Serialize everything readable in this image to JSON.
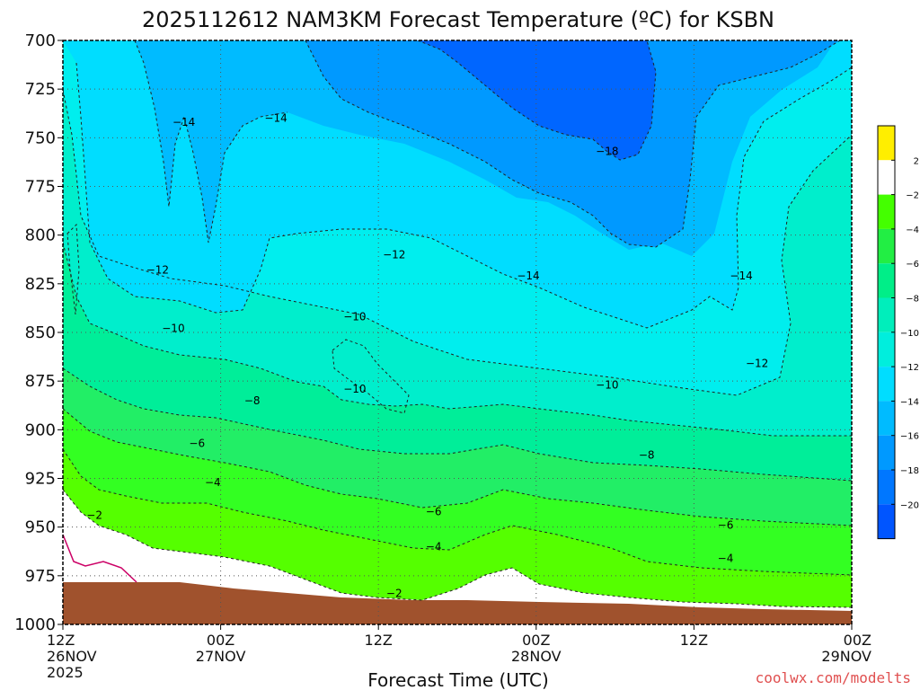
{
  "chart_data": {
    "type": "contour",
    "title": "2025112612 NAM3KM Forecast Temperature (ºC) for KSBN",
    "xlabel": "Forecast Time (UTC)",
    "ylabel": "",
    "y_ticks": [
      "700",
      "725",
      "750",
      "775",
      "800",
      "825",
      "850",
      "875",
      "900",
      "925",
      "950",
      "975",
      "1000"
    ],
    "ylim": [
      1000,
      700
    ],
    "x_ticks": [
      {
        "hour": 0,
        "line1": "12Z",
        "line2": "26NOV",
        "line3": "2025"
      },
      {
        "hour": 12,
        "line1": "00Z",
        "line2": "27NOV",
        "line3": ""
      },
      {
        "hour": 24,
        "line1": "12Z",
        "line2": "",
        "line3": ""
      },
      {
        "hour": 36,
        "line1": "00Z",
        "line2": "28NOV",
        "line3": ""
      },
      {
        "hour": 48,
        "line1": "12Z",
        "line2": "",
        "line3": ""
      },
      {
        "hour": 60,
        "line1": "00Z",
        "line2": "29NOV",
        "line3": ""
      }
    ],
    "xlim": [
      0,
      60
    ],
    "contour_labels": [
      {
        "text": "−14",
        "hour": 9.2,
        "p": 742
      },
      {
        "text": "−14",
        "hour": 16.2,
        "p": 740
      },
      {
        "text": "−18",
        "hour": 41.4,
        "p": 757
      },
      {
        "text": "−12",
        "hour": 7.2,
        "p": 818
      },
      {
        "text": "−12",
        "hour": 25.2,
        "p": 810
      },
      {
        "text": "−14",
        "hour": 35.4,
        "p": 821
      },
      {
        "text": "−14",
        "hour": 51.6,
        "p": 821
      },
      {
        "text": "−10",
        "hour": 8.4,
        "p": 848
      },
      {
        "text": "−10",
        "hour": 22.2,
        "p": 842
      },
      {
        "text": "−10",
        "hour": 22.2,
        "p": 879
      },
      {
        "text": "−10",
        "hour": 41.4,
        "p": 877
      },
      {
        "text": "−12",
        "hour": 52.8,
        "p": 866
      },
      {
        "text": "−8",
        "hour": 14.4,
        "p": 885
      },
      {
        "text": "−6",
        "hour": 10.2,
        "p": 907
      },
      {
        "text": "−8",
        "hour": 44.4,
        "p": 913
      },
      {
        "text": "−4",
        "hour": 11.4,
        "p": 927
      },
      {
        "text": "−6",
        "hour": 28.2,
        "p": 942
      },
      {
        "text": "−6",
        "hour": 50.4,
        "p": 949
      },
      {
        "text": "−2",
        "hour": 2.4,
        "p": 944
      },
      {
        "text": "−4",
        "hour": 28.2,
        "p": 960
      },
      {
        "text": "−4",
        "hour": 50.4,
        "p": 966
      },
      {
        "text": "−2",
        "hour": 25.2,
        "p": 984
      }
    ],
    "colorbar": {
      "labels": [
        "2",
        "−2",
        "−4",
        "−6",
        "−8",
        "−10",
        "−12",
        "−14",
        "−16",
        "−18",
        "−20"
      ],
      "colors": [
        "#ffee00",
        "#ffffff",
        "#44ff00",
        "#22ee44",
        "#00ee88",
        "#00eebb",
        "#00eedd",
        "#00ddff",
        "#00bbff",
        "#0099ff",
        "#0077ff",
        "#0055ff"
      ]
    },
    "fill_colors": {
      "deep_blue": "#0066ff",
      "blue": "#0099ff",
      "light_blue": "#00bbff",
      "cyan": "#00ddff",
      "cyan_light": "#00eeee",
      "aqua": "#00eecc",
      "teal": "#00ee99",
      "green_teal": "#22ee66",
      "green": "#33ff22",
      "lime": "#55ff00",
      "white": "#ffffff",
      "ground": "#a0522d",
      "magenta_line": "#cc0066"
    }
  },
  "credit": "coolwx.com/modelts"
}
